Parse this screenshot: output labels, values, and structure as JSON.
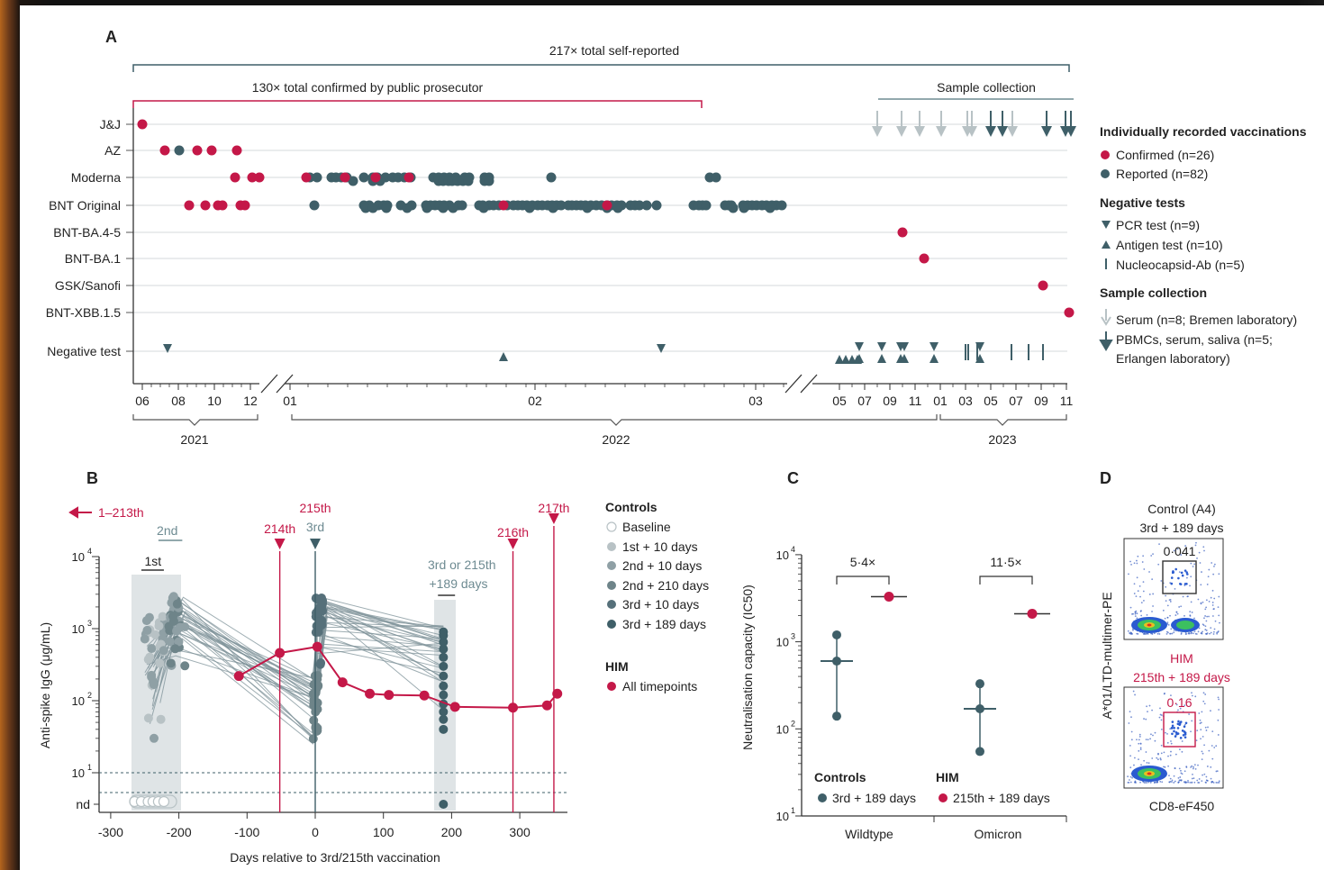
{
  "colors": {
    "red": "#c41848",
    "teal": "#3f5f68",
    "lightgrey": "#b8c2c5",
    "bggrey": "#dfe4e6"
  },
  "panelA": {
    "letter": "A",
    "bracket_total": "217× total self-reported",
    "bracket_confirmed": "130× total confirmed by public prosecutor",
    "bracket_sample": "Sample collection",
    "rows": [
      "J&J",
      "AZ",
      "Moderna",
      "BNT Original",
      "BNT-BA.4-5",
      "BNT-BA.1",
      "GSK/Sanofi",
      "BNT-XBB.1.5",
      "Negative test"
    ],
    "ticks": [
      "06",
      "08",
      "10",
      "12",
      "01",
      "02",
      "03",
      "05",
      "07",
      "09",
      "11",
      "01",
      "03",
      "05",
      "07",
      "09",
      "11"
    ],
    "years": [
      "2021",
      "2022",
      "2023"
    ],
    "legend": {
      "h1": "Individually recorded vaccinations",
      "confirmed": "Confirmed (n=26)",
      "reported": "Reported (n=82)",
      "h2": "Negative tests",
      "pcr": "PCR test (n=9)",
      "antigen": "Antigen test (n=10)",
      "nucleo": "Nucleocapsid-Ab (n=5)",
      "h3": "Sample collection",
      "serum": "Serum (n=8; Bremen laboratory)",
      "pbmc1": "PBMCs, serum, saliva (n=5;",
      "pbmc2": "Erlangen laboratory)"
    }
  },
  "panelB": {
    "letter": "B",
    "ylabel": "Anti-spike IgG (μg/mL)",
    "xlabel": "Days relative to 3rd/215th vaccination",
    "xticks": [
      "-300",
      "-200",
      "-100",
      "0",
      "100",
      "200",
      "300"
    ],
    "ytick_nd": "nd",
    "arrow_label": "1–213th",
    "ann_1st": "1st",
    "ann_2nd": "2nd",
    "ann_3rd": "3rd",
    "ann_214": "214th",
    "ann_215": "215th",
    "ann_216": "216th",
    "ann_217": "217th",
    "ann_189a": "3rd or 215th",
    "ann_189b": "+189 days",
    "legend": {
      "h1": "Controls",
      "baseline": "Baseline",
      "d1": "1st + 10 days",
      "d2": "2nd + 10 days",
      "d3": "2nd + 210 days",
      "d4": "3rd + 10 days",
      "d5": "3rd + 189 days",
      "h2": "HIM",
      "all": "All timepoints"
    }
  },
  "panelC": {
    "letter": "C",
    "ylabel": "Neutralisation capacity (IC50)",
    "groups": [
      "Wildtype",
      "Omicron"
    ],
    "fold_wt": "5·4×",
    "fold_om": "11·5×",
    "legend_controls": "Controls",
    "legend_him": "HIM",
    "legend_c": "3rd + 189 days",
    "legend_h": "215th + 189 days"
  },
  "panelD": {
    "letter": "D",
    "top_title1": "Control (A4)",
    "top_title2": "3rd + 189 days",
    "top_value": "0·041",
    "bot_title1": "HIM",
    "bot_title2": "215th + 189 days",
    "bot_value": "0·16",
    "ylabel": "A*01/LTD-multimer-PE",
    "xlabel": "CD8-eF450"
  },
  "chart_data": [
    {
      "type": "scatter",
      "title": "A",
      "categories": [
        "J&J",
        "AZ",
        "Moderna",
        "BNT Original",
        "BNT-BA.4-5",
        "BNT-BA.1",
        "GSK/Sanofi",
        "BNT-XBB.1.5",
        "Negative test"
      ],
      "x_range": [
        "2021-06",
        "2023-11"
      ],
      "series": [
        {
          "name": "Confirmed (n=26)",
          "points": [
            [
              "J&J",
              "2021-06"
            ],
            [
              "AZ",
              "2021-07"
            ],
            [
              "AZ",
              "2021-09"
            ],
            [
              "AZ",
              "2021-10"
            ],
            [
              "AZ",
              "2021-11"
            ],
            [
              "Moderna",
              "2021-11"
            ],
            [
              "Moderna",
              "2021-12"
            ],
            [
              "BNT Original",
              "2021-08"
            ],
            [
              "BNT Original",
              "2021-09"
            ],
            [
              "BNT Original",
              "2021-10"
            ],
            [
              "BNT Original",
              "2021-12"
            ],
            [
              "BNT-BA.4-5",
              "2022-10"
            ],
            [
              "BNT-BA.1",
              "2022-11"
            ],
            [
              "GSK/Sanofi",
              "2023-09"
            ],
            [
              "BNT-XBB.1.5",
              "2023-11"
            ]
          ]
        },
        {
          "name": "Reported (n=82)",
          "points": [
            [
              "AZ",
              "2021-08"
            ],
            [
              "Moderna",
              "2022-01"
            ],
            [
              "Moderna",
              "2022-02"
            ],
            [
              "Moderna",
              "2022-03"
            ],
            [
              "BNT Original",
              "2022-01"
            ],
            [
              "BNT Original",
              "2022-02"
            ],
            [
              "BNT Original",
              "2022-03"
            ]
          ]
        }
      ]
    },
    {
      "type": "line",
      "title": "B",
      "xlabel": "Days relative to 3rd/215th vaccination",
      "ylabel": "Anti-spike IgG (μg/mL)",
      "xlim": [
        -300,
        350
      ],
      "ylim": [
        10,
        10000
      ],
      "yscale": "log",
      "series": [
        {
          "name": "HIM",
          "x": [
            -112,
            -52,
            3,
            40,
            80,
            108,
            160,
            205,
            290,
            340,
            355
          ],
          "y": [
            220,
            460,
            560,
            180,
            125,
            120,
            118,
            82,
            80,
            86,
            125
          ]
        }
      ]
    },
    {
      "type": "scatter",
      "title": "C",
      "ylabel": "Neutralisation capacity (IC50)",
      "categories": [
        "Wildtype",
        "Omicron"
      ],
      "yscale": "log",
      "ylim": [
        10,
        10000
      ],
      "series": [
        {
          "name": "Controls",
          "values": [
            [
              1200,
              600,
              140
            ],
            [
              330,
              170,
              55
            ]
          ]
        },
        {
          "name": "HIM",
          "values": [
            3300,
            2100
          ]
        }
      ]
    },
    {
      "type": "scatter",
      "title": "D",
      "xlabel": "CD8-eF450",
      "ylabel": "A*01/LTD-multimer-PE",
      "series": [
        {
          "name": "Control (A4)",
          "values": [
            0.041
          ]
        },
        {
          "name": "HIM",
          "values": [
            0.16
          ]
        }
      ]
    }
  ]
}
